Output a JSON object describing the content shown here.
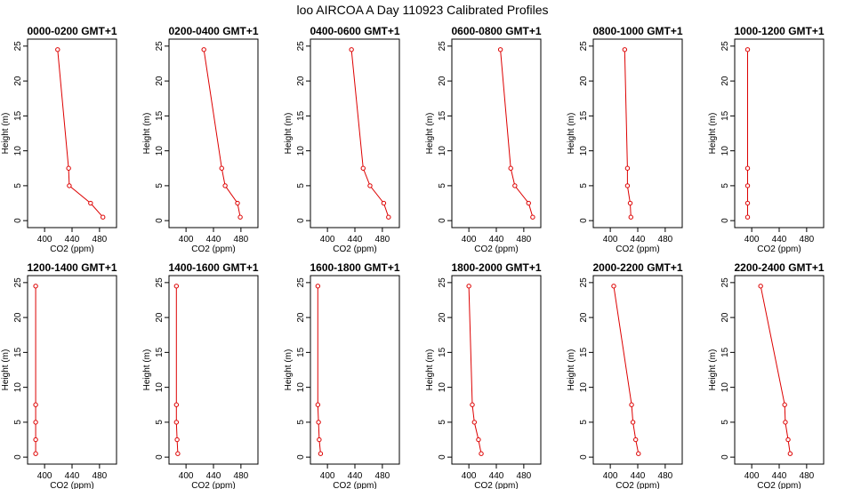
{
  "title": "loo AIRCOA A  Day 110923  Calibrated Profiles",
  "colors": {
    "series": "#dd0000",
    "axis": "#000000"
  },
  "chart_data": [
    {
      "type": "line",
      "title": "0000-0200 GMT+1",
      "xlabel": "CO2 (ppm)",
      "ylabel": "Height (m)",
      "xlim": [
        380,
        500
      ],
      "ylim": [
        0,
        25
      ],
      "xticks": [
        400,
        440,
        480
      ],
      "yticks": [
        0,
        5,
        10,
        15,
        20,
        25
      ],
      "series": [
        {
          "x": [
            485,
            467,
            436,
            435,
            419
          ],
          "y": [
            0.5,
            2.5,
            5,
            7.5,
            24.5
          ]
        }
      ]
    },
    {
      "type": "line",
      "title": "0200-0400 GMT+1",
      "xlabel": "CO2 (ppm)",
      "ylabel": "Height (m)",
      "xlim": [
        380,
        500
      ],
      "ylim": [
        0,
        25
      ],
      "xticks": [
        400,
        440,
        480
      ],
      "yticks": [
        0,
        5,
        10,
        15,
        20,
        25
      ],
      "series": [
        {
          "x": [
            479,
            475,
            457,
            452,
            426
          ],
          "y": [
            0.5,
            2.5,
            5,
            7.5,
            24.5
          ]
        }
      ]
    },
    {
      "type": "line",
      "title": "0400-0600 GMT+1",
      "xlabel": "CO2 (ppm)",
      "ylabel": "Height (m)",
      "xlim": [
        380,
        500
      ],
      "ylim": [
        0,
        25
      ],
      "xticks": [
        400,
        440,
        480
      ],
      "yticks": [
        0,
        5,
        10,
        15,
        20,
        25
      ],
      "series": [
        {
          "x": [
            489,
            482,
            462,
            452,
            435
          ],
          "y": [
            0.5,
            2.5,
            5,
            7.5,
            24.5
          ]
        }
      ]
    },
    {
      "type": "line",
      "title": "0600-0800 GMT+1",
      "xlabel": "CO2 (ppm)",
      "ylabel": "Height (m)",
      "xlim": [
        380,
        500
      ],
      "ylim": [
        0,
        25
      ],
      "xticks": [
        400,
        440,
        480
      ],
      "yticks": [
        0,
        5,
        10,
        15,
        20,
        25
      ],
      "series": [
        {
          "x": [
            493,
            487,
            467,
            461,
            446
          ],
          "y": [
            0.5,
            2.5,
            5,
            7.5,
            24.5
          ]
        }
      ]
    },
    {
      "type": "line",
      "title": "0800-1000 GMT+1",
      "xlabel": "CO2 (ppm)",
      "ylabel": "Height (m)",
      "xlim": [
        380,
        500
      ],
      "ylim": [
        0,
        25
      ],
      "xticks": [
        400,
        440,
        480
      ],
      "yticks": [
        0,
        5,
        10,
        15,
        20,
        25
      ],
      "series": [
        {
          "x": [
            430,
            429,
            425,
            425,
            421
          ],
          "y": [
            0.5,
            2.5,
            5,
            7.5,
            24.5
          ]
        }
      ]
    },
    {
      "type": "line",
      "title": "1000-1200 GMT+1",
      "xlabel": "CO2 (ppm)",
      "ylabel": "Height (m)",
      "xlim": [
        380,
        500
      ],
      "ylim": [
        0,
        25
      ],
      "xticks": [
        400,
        440,
        480
      ],
      "yticks": [
        0,
        5,
        10,
        15,
        20,
        25
      ],
      "series": [
        {
          "x": [
            394,
            394,
            394,
            394,
            394
          ],
          "y": [
            0.5,
            2.5,
            5,
            7.5,
            24.5
          ]
        }
      ]
    },
    {
      "type": "line",
      "title": "1200-1400 GMT+1",
      "xlabel": "CO2 (ppm)",
      "ylabel": "Height (m)",
      "xlim": [
        380,
        500
      ],
      "ylim": [
        0,
        25
      ],
      "xticks": [
        400,
        440,
        480
      ],
      "yticks": [
        0,
        5,
        10,
        15,
        20,
        25
      ],
      "series": [
        {
          "x": [
            387,
            387,
            387,
            387,
            387
          ],
          "y": [
            0.5,
            2.5,
            5,
            7.5,
            24.5
          ]
        }
      ]
    },
    {
      "type": "line",
      "title": "1400-1600 GMT+1",
      "xlabel": "CO2 (ppm)",
      "ylabel": "Height (m)",
      "xlim": [
        380,
        500
      ],
      "ylim": [
        0,
        25
      ],
      "xticks": [
        400,
        440,
        480
      ],
      "yticks": [
        0,
        5,
        10,
        15,
        20,
        25
      ],
      "series": [
        {
          "x": [
            388,
            387,
            386,
            386,
            386
          ],
          "y": [
            0.5,
            2.5,
            5,
            7.5,
            24.5
          ]
        }
      ]
    },
    {
      "type": "line",
      "title": "1600-1800 GMT+1",
      "xlabel": "CO2 (ppm)",
      "ylabel": "Height (m)",
      "xlim": [
        380,
        500
      ],
      "ylim": [
        0,
        25
      ],
      "xticks": [
        400,
        440,
        480
      ],
      "yticks": [
        0,
        5,
        10,
        15,
        20,
        25
      ],
      "series": [
        {
          "x": [
            390,
            388,
            387,
            386,
            386
          ],
          "y": [
            0.5,
            2.5,
            5,
            7.5,
            24.5
          ]
        }
      ]
    },
    {
      "type": "line",
      "title": "1800-2000 GMT+1",
      "xlabel": "CO2 (ppm)",
      "ylabel": "Height (m)",
      "xlim": [
        380,
        500
      ],
      "ylim": [
        0,
        25
      ],
      "xticks": [
        400,
        440,
        480
      ],
      "yticks": [
        0,
        5,
        10,
        15,
        20,
        25
      ],
      "series": [
        {
          "x": [
            418,
            414,
            408,
            405,
            400
          ],
          "y": [
            0.5,
            2.5,
            5,
            7.5,
            24.5
          ]
        }
      ]
    },
    {
      "type": "line",
      "title": "2000-2200 GMT+1",
      "xlabel": "CO2 (ppm)",
      "ylabel": "Height (m)",
      "xlim": [
        380,
        500
      ],
      "ylim": [
        0,
        25
      ],
      "xticks": [
        400,
        440,
        480
      ],
      "yticks": [
        0,
        5,
        10,
        15,
        20,
        25
      ],
      "series": [
        {
          "x": [
            441,
            437,
            433,
            431,
            405
          ],
          "y": [
            0.5,
            2.5,
            5,
            7.5,
            24.5
          ]
        }
      ]
    },
    {
      "type": "line",
      "title": "2200-2400 GMT+1",
      "xlabel": "CO2 (ppm)",
      "ylabel": "Height (m)",
      "xlim": [
        380,
        500
      ],
      "ylim": [
        0,
        25
      ],
      "xticks": [
        400,
        440,
        480
      ],
      "yticks": [
        0,
        5,
        10,
        15,
        20,
        25
      ],
      "series": [
        {
          "x": [
            456,
            453,
            449,
            448,
            413
          ],
          "y": [
            0.5,
            2.5,
            5,
            7.5,
            24.5
          ]
        }
      ]
    }
  ]
}
